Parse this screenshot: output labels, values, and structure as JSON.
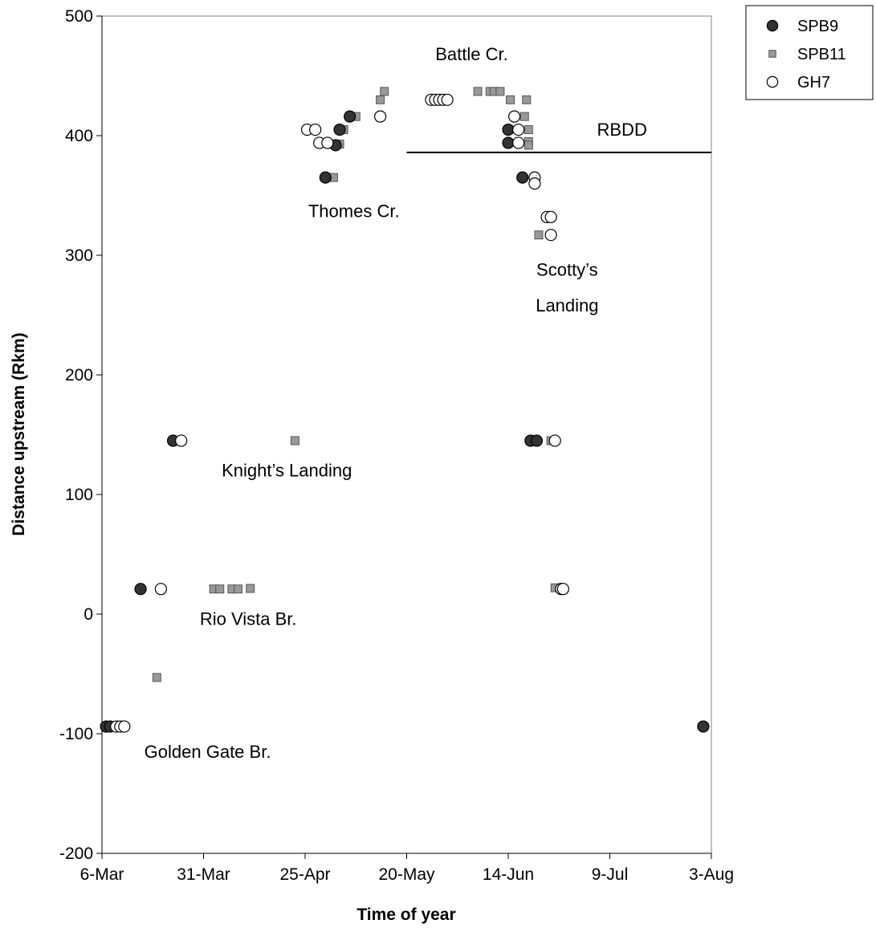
{
  "chart_data": {
    "type": "scatter",
    "xlabel": "Time of year",
    "ylabel": "Distance upstream (Rkm)",
    "xlim": [
      0,
      150
    ],
    "ylim": [
      -200,
      500
    ],
    "grid": false,
    "legend_position": "top-right",
    "x_ticks": [
      {
        "value": 0,
        "label": "6-Mar"
      },
      {
        "value": 25,
        "label": "31-Mar"
      },
      {
        "value": 50,
        "label": "25-Apr"
      },
      {
        "value": 75,
        "label": "20-May"
      },
      {
        "value": 100,
        "label": "14-Jun"
      },
      {
        "value": 125,
        "label": "9-Jul"
      },
      {
        "value": 150,
        "label": "3-Aug"
      }
    ],
    "y_ticks": [
      {
        "value": -200,
        "label": "-200"
      },
      {
        "value": -100,
        "label": "-100"
      },
      {
        "value": 0,
        "label": "0"
      },
      {
        "value": 100,
        "label": "100"
      },
      {
        "value": 200,
        "label": "200"
      },
      {
        "value": 300,
        "label": "300"
      },
      {
        "value": 400,
        "label": "400"
      },
      {
        "value": 500,
        "label": "500"
      }
    ],
    "series": [
      {
        "name": "SPB9",
        "marker": "circle",
        "fill": "#333333",
        "stroke": "#000000",
        "points": [
          [
            1,
            -94
          ],
          [
            2,
            -94
          ],
          [
            9.5,
            21
          ],
          [
            17.5,
            145
          ],
          [
            55,
            365
          ],
          [
            57.5,
            392
          ],
          [
            58.5,
            405
          ],
          [
            61,
            416
          ],
          [
            100,
            405
          ],
          [
            100,
            394
          ],
          [
            103.5,
            365
          ],
          [
            105.5,
            145
          ],
          [
            107,
            145
          ],
          [
            148,
            -94
          ]
        ]
      },
      {
        "name": "SPB11",
        "marker": "square",
        "fill": "#999999",
        "stroke": "#555555",
        "points": [
          [
            13.5,
            -53
          ],
          [
            27.5,
            21
          ],
          [
            29,
            21
          ],
          [
            32,
            21
          ],
          [
            33.5,
            21
          ],
          [
            36.5,
            21.5
          ],
          [
            47.5,
            145
          ],
          [
            57,
            365
          ],
          [
            58.5,
            393
          ],
          [
            59.5,
            405
          ],
          [
            62.5,
            416
          ],
          [
            68.5,
            430
          ],
          [
            69.5,
            437
          ],
          [
            92.5,
            437
          ],
          [
            95.5,
            437
          ],
          [
            96.5,
            437
          ],
          [
            98,
            437
          ],
          [
            100.5,
            430
          ],
          [
            104.5,
            430
          ],
          [
            104,
            416
          ],
          [
            105,
            405
          ],
          [
            105,
            395
          ],
          [
            105,
            392
          ],
          [
            107.5,
            317
          ],
          [
            110.5,
            145
          ],
          [
            111.5,
            22
          ]
        ]
      },
      {
        "name": "GH7",
        "marker": "circle",
        "fill": "#ffffff",
        "stroke": "#000000",
        "points": [
          [
            3.5,
            -94
          ],
          [
            4.5,
            -94
          ],
          [
            5.5,
            -94
          ],
          [
            14.5,
            21
          ],
          [
            19.5,
            145
          ],
          [
            50.5,
            405
          ],
          [
            52.5,
            405
          ],
          [
            53.5,
            394
          ],
          [
            55.5,
            394
          ],
          [
            68.5,
            416
          ],
          [
            81,
            430
          ],
          [
            82,
            430
          ],
          [
            83,
            430
          ],
          [
            84,
            430
          ],
          [
            85,
            430
          ],
          [
            101.5,
            416
          ],
          [
            102.5,
            405
          ],
          [
            102.5,
            394
          ],
          [
            106.5,
            365
          ],
          [
            106.5,
            360
          ],
          [
            109.5,
            332
          ],
          [
            110.5,
            332
          ],
          [
            110.5,
            317
          ],
          [
            111.5,
            145
          ],
          [
            113,
            21
          ],
          [
            113.5,
            21
          ]
        ]
      }
    ],
    "reference_line": {
      "label": "RBDD",
      "y": 386,
      "x_start": 75,
      "x_end": 150
    },
    "annotations": [
      {
        "text": "Battle Cr.",
        "x": 91,
        "y": 463
      },
      {
        "text": "RBDD",
        "x": 128,
        "y": 400
      },
      {
        "text": "Thomes Cr.",
        "x": 62,
        "y": 332
      },
      {
        "text": "Scotty’s",
        "x": 114.5,
        "y": 283
      },
      {
        "text": "Landing",
        "x": 114.5,
        "y": 253
      },
      {
        "text": "Knight’s Landing",
        "x": 45.5,
        "y": 115
      },
      {
        "text": "Rio Vista Br.",
        "x": 36,
        "y": -9
      },
      {
        "text": "Golden Gate Br.",
        "x": 26,
        "y": -120
      }
    ]
  }
}
